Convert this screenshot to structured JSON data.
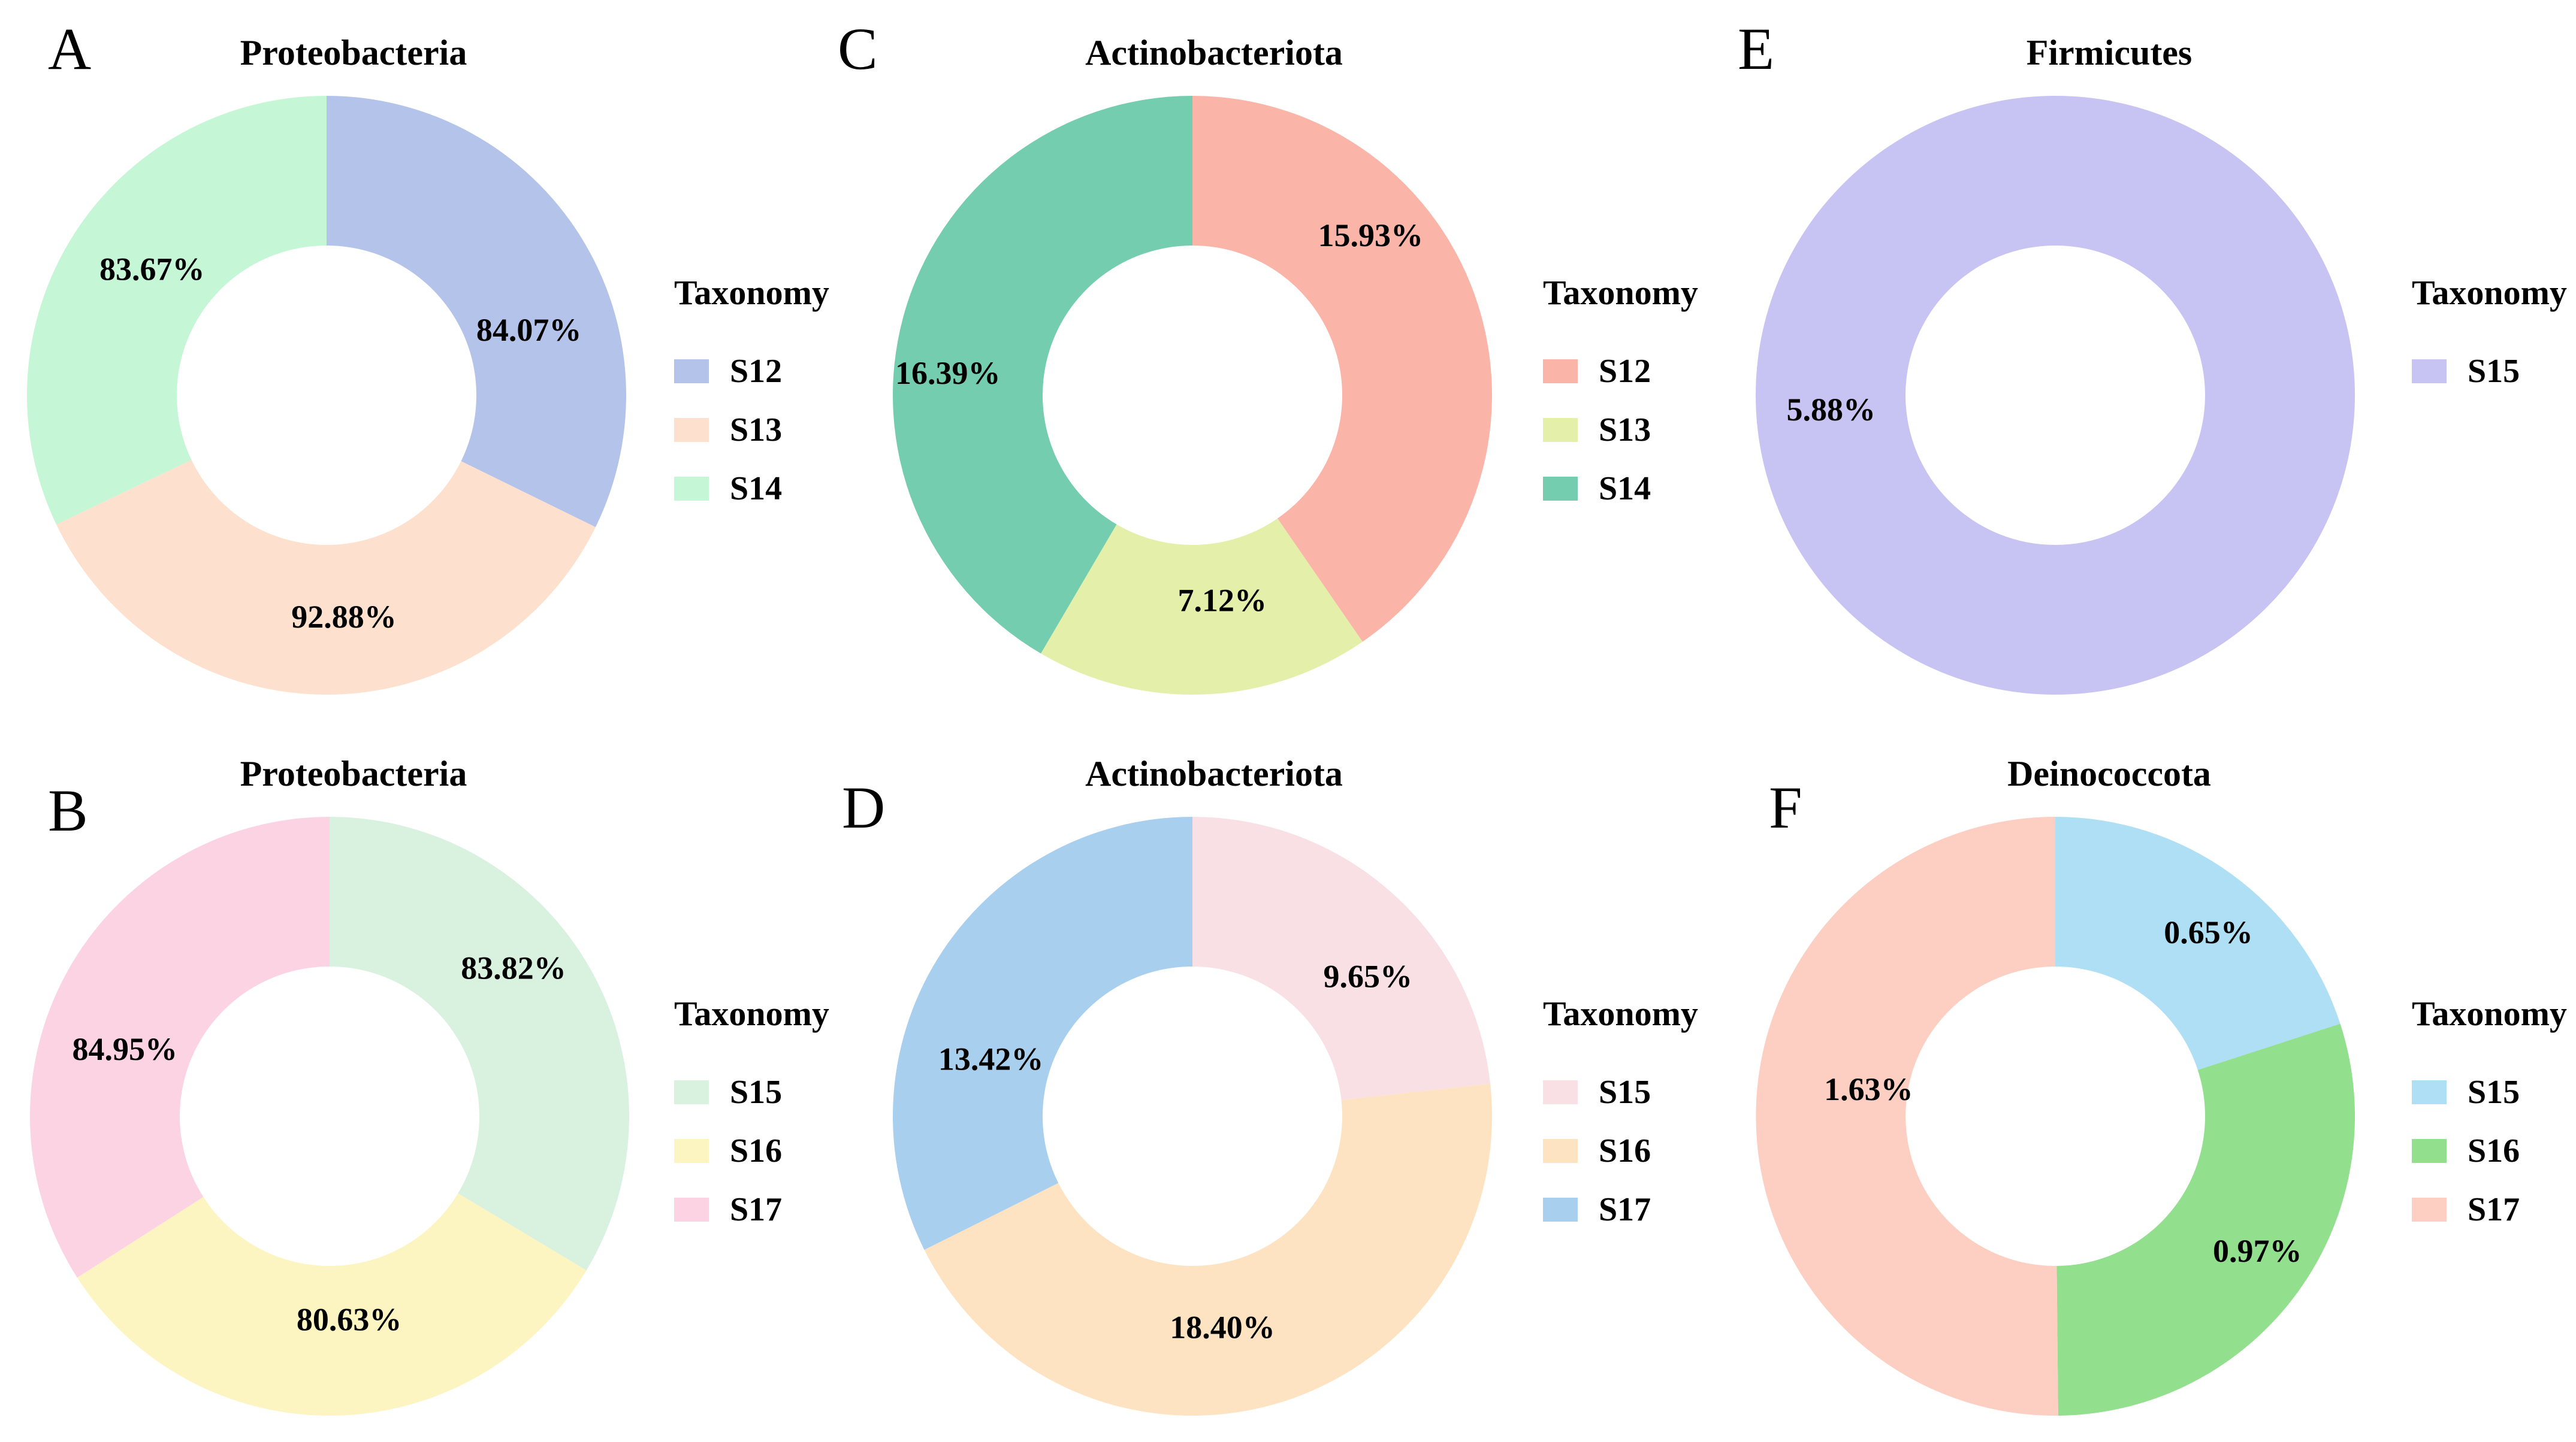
{
  "figure": {
    "background_color": "#ffffff",
    "text_color": "#000000",
    "panel_letters": [
      "A",
      "B",
      "C",
      "D",
      "E",
      "F"
    ]
  },
  "chart_data": [
    {
      "panel_letter": "A",
      "type": "pie",
      "subtype": "donut",
      "title": "Proteobacteria",
      "legend_title": "Taxonomy",
      "legend_position": "right",
      "inner_radius_ratio": 0.5,
      "start_angle_deg": 0,
      "direction": "clockwise",
      "slices": [
        {
          "category": "S12",
          "value_percent": 84.07,
          "data_label": "84.07%",
          "color": "#b4c3e9",
          "label_angle_deg": 72.0,
          "label_radius_frac": 0.71
        },
        {
          "category": "S13",
          "value_percent": 92.88,
          "data_label": "92.88%",
          "color": "#fde1ce",
          "label_angle_deg": 175.5,
          "label_radius_frac": 0.74
        },
        {
          "category": "S14",
          "value_percent": 83.67,
          "data_label": "83.67%",
          "color": "#c5f6d6",
          "label_angle_deg": 306.0,
          "label_radius_frac": 0.72
        }
      ]
    },
    {
      "panel_letter": "B",
      "type": "pie",
      "subtype": "donut",
      "title": "Proteobacteria",
      "legend_title": "Taxonomy",
      "legend_position": "right",
      "inner_radius_ratio": 0.5,
      "start_angle_deg": 0,
      "direction": "clockwise",
      "slices": [
        {
          "category": "S15",
          "value_percent": 83.82,
          "data_label": "83.82%",
          "color": "#d8f2df",
          "label_angle_deg": 51.0,
          "label_radius_frac": 0.79
        },
        {
          "category": "S16",
          "value_percent": 80.63,
          "data_label": "80.63%",
          "color": "#fdf5c1",
          "label_angle_deg": 174.5,
          "label_radius_frac": 0.68
        },
        {
          "category": "S17",
          "value_percent": 84.95,
          "data_label": "84.95%",
          "color": "#fbd3e3",
          "label_angle_deg": 288.3,
          "label_radius_frac": 0.72
        }
      ]
    },
    {
      "panel_letter": "C",
      "type": "pie",
      "subtype": "donut",
      "title": "Actinobacteriota",
      "legend_title": "Taxonomy",
      "legend_position": "right",
      "inner_radius_ratio": 0.5,
      "start_angle_deg": 0,
      "direction": "clockwise",
      "slices": [
        {
          "category": "S12",
          "value_percent": 15.93,
          "data_label": "15.93%",
          "color": "#fbb4a8",
          "label_angle_deg": 48.0,
          "label_radius_frac": 0.8
        },
        {
          "category": "S13",
          "value_percent": 7.12,
          "data_label": "7.12%",
          "color": "#e4f0a9",
          "label_angle_deg": 171.7,
          "label_radius_frac": 0.69
        },
        {
          "category": "S14",
          "value_percent": 16.39,
          "data_label": "16.39%",
          "color": "#73cdae",
          "label_angle_deg": 275.3,
          "label_radius_frac": 0.82
        }
      ]
    },
    {
      "panel_letter": "D",
      "type": "pie",
      "subtype": "donut",
      "title": "Actinobacteriota",
      "legend_title": "Taxonomy",
      "legend_position": "right",
      "inner_radius_ratio": 0.5,
      "start_angle_deg": 0,
      "direction": "clockwise",
      "slices": [
        {
          "category": "S15",
          "value_percent": 9.65,
          "data_label": "9.65%",
          "color": "#f9e0e5",
          "label_angle_deg": 51.3,
          "label_radius_frac": 0.75
        },
        {
          "category": "S16",
          "value_percent": 18.4,
          "data_label": "18.40%",
          "color": "#fde3c2",
          "label_angle_deg": 171.9,
          "label_radius_frac": 0.71
        },
        {
          "category": "S17",
          "value_percent": 13.42,
          "data_label": "13.42%",
          "color": "#a9cfee",
          "label_angle_deg": 286.0,
          "label_radius_frac": 0.7
        }
      ]
    },
    {
      "panel_letter": "E",
      "type": "pie",
      "subtype": "donut",
      "title": "Firmicutes",
      "legend_title": "Taxonomy",
      "legend_position": "right",
      "inner_radius_ratio": 0.5,
      "start_angle_deg": 0,
      "direction": "clockwise",
      "slices": [
        {
          "category": "S15",
          "value_percent": 5.88,
          "data_label": "5.88%",
          "color": "#c7c3f2",
          "label_angle_deg": 266.5,
          "label_radius_frac": 0.75
        }
      ]
    },
    {
      "panel_letter": "F",
      "type": "pie",
      "subtype": "donut",
      "title": "Deinococcota",
      "legend_title": "Taxonomy",
      "legend_position": "right",
      "inner_radius_ratio": 0.5,
      "start_angle_deg": 0,
      "direction": "clockwise",
      "slices": [
        {
          "category": "S15",
          "value_percent": 0.65,
          "data_label": "0.65%",
          "color": "#afdff4",
          "label_angle_deg": 39.7,
          "label_radius_frac": 0.8
        },
        {
          "category": "S16",
          "value_percent": 0.97,
          "data_label": "0.97%",
          "color": "#92df8d",
          "label_angle_deg": 123.6,
          "label_radius_frac": 0.81
        },
        {
          "category": "S17",
          "value_percent": 1.63,
          "data_label": "1.63%",
          "color": "#fccfc2",
          "label_angle_deg": 278.4,
          "label_radius_frac": 0.63
        }
      ]
    }
  ]
}
